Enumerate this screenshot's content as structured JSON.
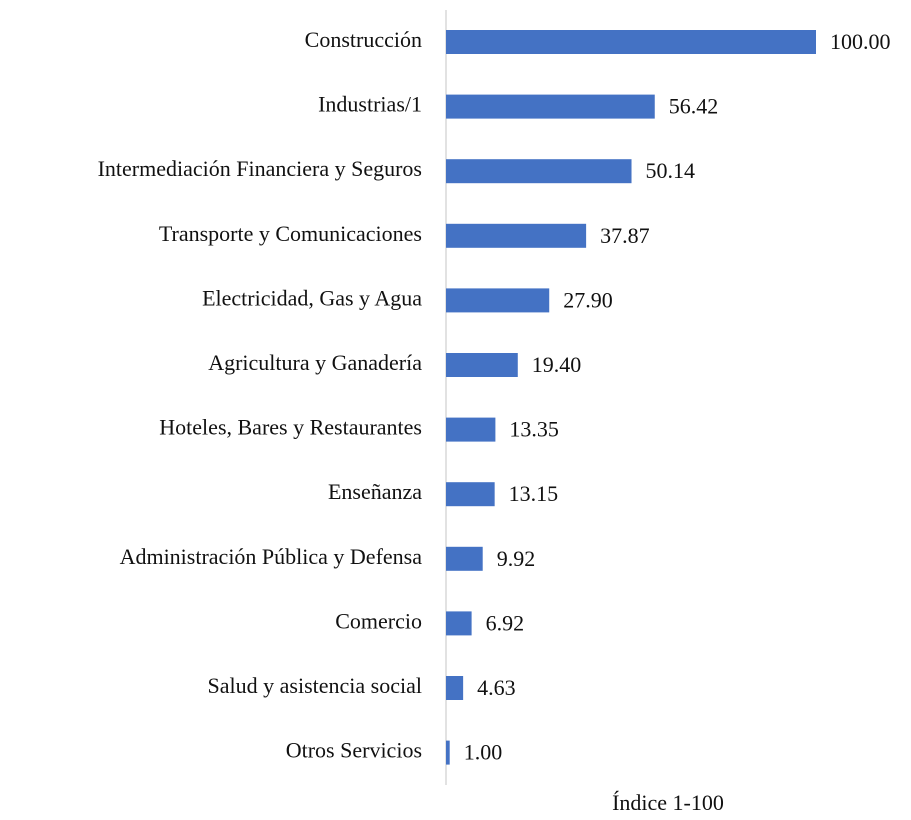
{
  "chart_data": {
    "type": "bar",
    "orientation": "horizontal",
    "categories": [
      "Construcción",
      "Industrias/1",
      "Intermediación Financiera y Seguros",
      "Transporte y Comunicaciones",
      "Electricidad, Gas y Agua",
      "Agricultura y Ganadería",
      "Hoteles, Bares y Restaurantes",
      "Enseñanza",
      "Administración Pública y Defensa",
      "Comercio",
      "Salud y asistencia social",
      "Otros Servicios"
    ],
    "values": [
      100,
      56.42,
      50.14,
      37.87,
      27.9,
      19.4,
      13.35,
      13.15,
      9.92,
      6.92,
      4.63,
      1
    ],
    "value_labels": [
      "100.00",
      "56.42",
      "50.14",
      "37.87",
      "27.90",
      "19.40",
      "13.35",
      "13.15",
      "9.92",
      "6.92",
      "4.63",
      "1.00"
    ],
    "color": "#4472c4",
    "xlim": [
      0,
      100
    ],
    "xlabel": "Índice 1-100"
  }
}
